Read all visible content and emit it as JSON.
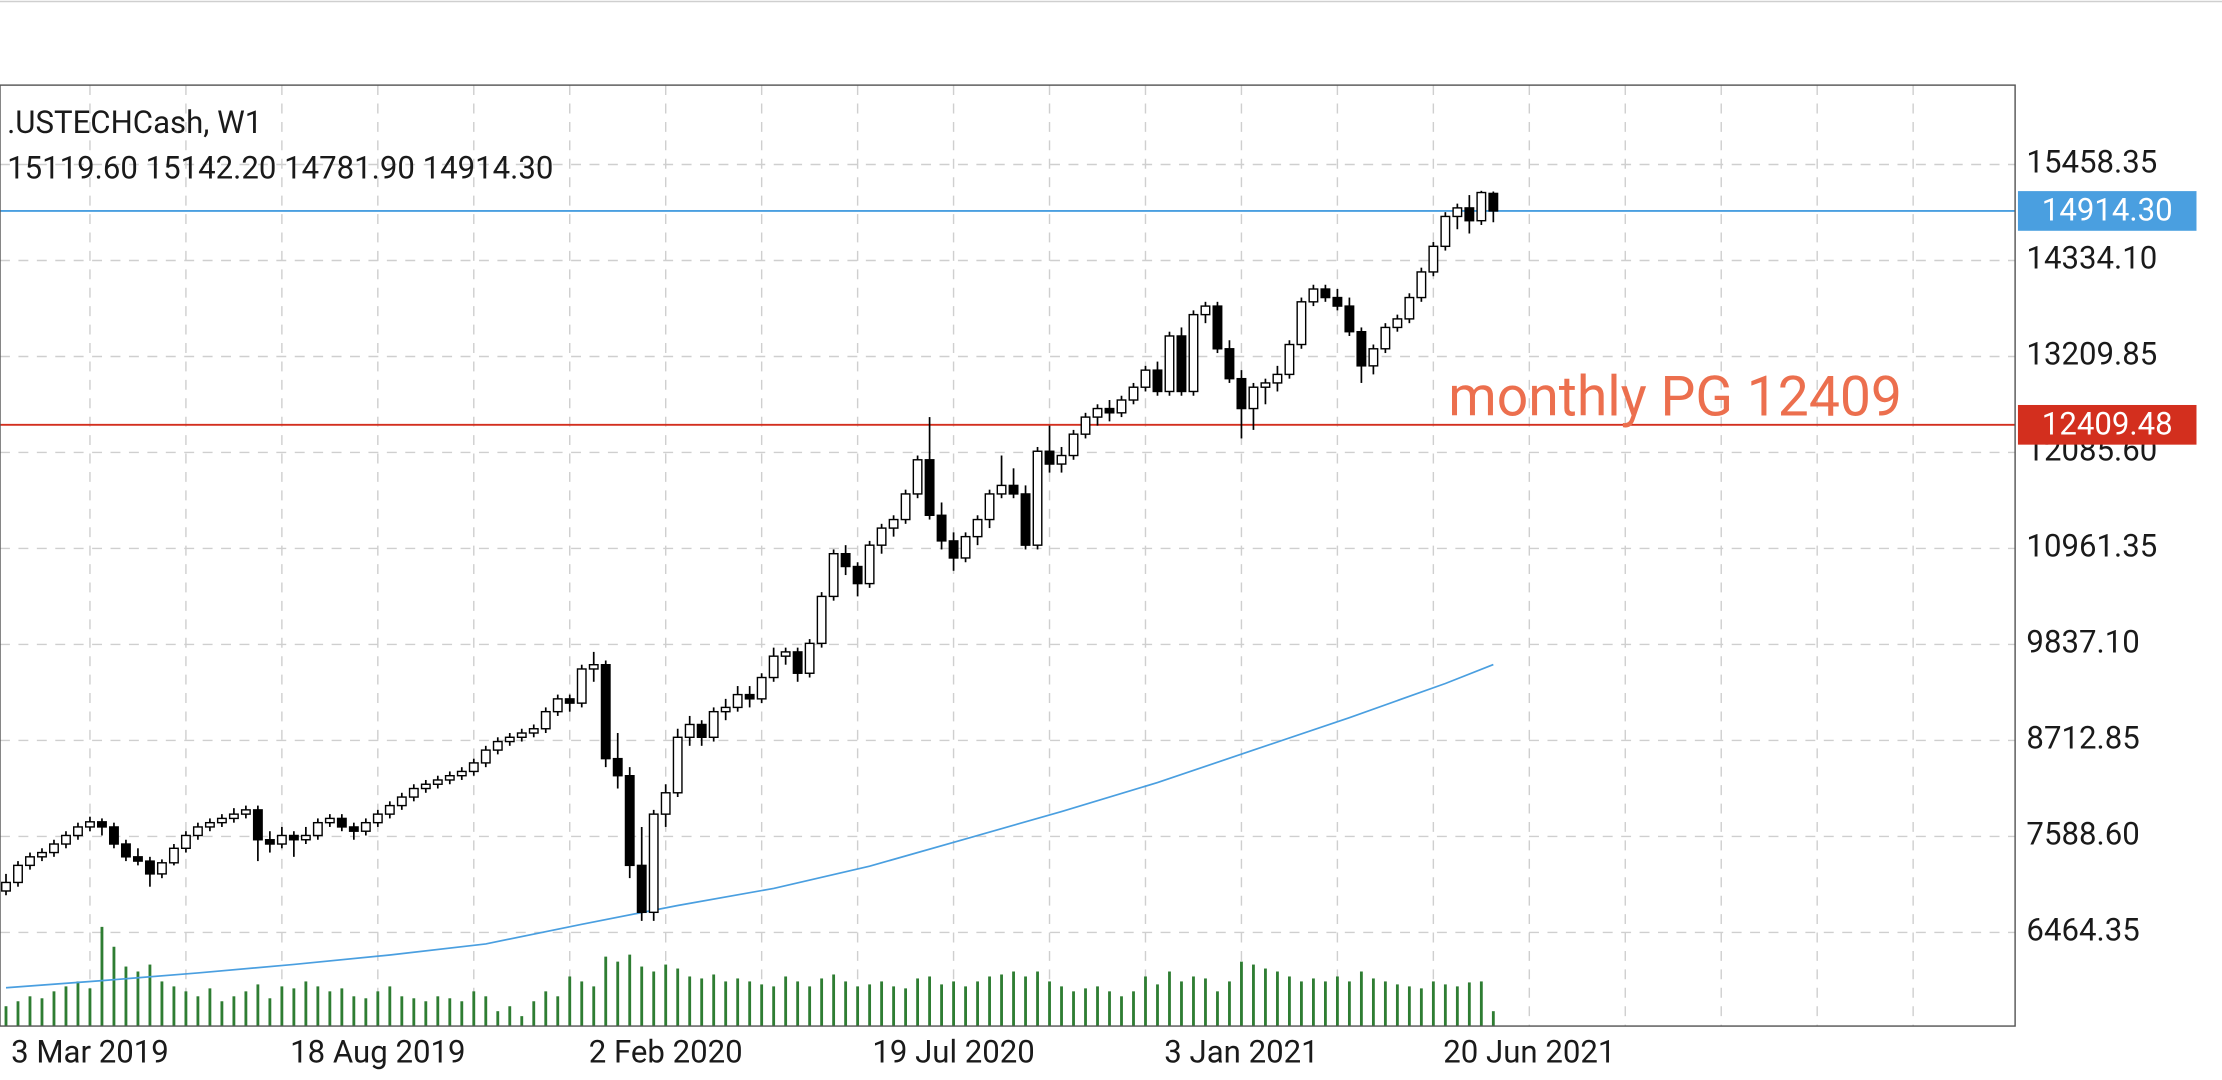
{
  "chart_data": {
    "type": "candlestick",
    "title": ".USTECHCash, W1",
    "subtitle": "15119.60 15142.20 14781.90 14914.30",
    "annotation": {
      "text": "monthly PG 12409",
      "color": "#ec6f4e"
    },
    "xlim": [
      -0.5,
      167.5
    ],
    "ylim": [
      5368,
      16388
    ],
    "volume_ylim": [
      0,
      100
    ],
    "grid": true,
    "up_color": "#ffffff",
    "down_color": "#000000",
    "volume_color": "#2e7d32",
    "yticks": [
      15458.35,
      {
        "value": 14334.1,
        "label": "14334.10"
      },
      13209.85,
      {
        "value": 12085.6,
        "label": "12085.60"
      },
      10961.35,
      {
        "value": 9837.1,
        "label": "9837.10"
      },
      8712.85,
      {
        "value": 7588.6,
        "label": "7588.60"
      },
      6464.35
    ],
    "xticks": [
      {
        "value": 7,
        "label": "3 Mar 2019"
      },
      {
        "value": 15,
        "label": null
      },
      {
        "value": 23,
        "label": null
      },
      {
        "value": 31,
        "label": "18 Aug 2019"
      },
      {
        "value": 39,
        "label": null
      },
      {
        "value": 47,
        "label": null
      },
      {
        "value": 55,
        "label": "2 Feb 2020"
      },
      {
        "value": 63,
        "label": null
      },
      {
        "value": 71,
        "label": null
      },
      {
        "value": 79,
        "label": "19 Jul 2020"
      },
      {
        "value": 87,
        "label": null
      },
      {
        "value": 95,
        "label": null
      },
      {
        "value": 103,
        "label": "3 Jan 2021"
      },
      {
        "value": 111,
        "label": null
      },
      {
        "value": 119,
        "label": null
      },
      {
        "value": 127,
        "label": "20 Jun 2021"
      },
      {
        "value": 135,
        "label": null
      },
      {
        "value": 143,
        "label": null
      },
      {
        "value": 151,
        "label": null
      },
      {
        "value": 159,
        "label": null
      }
    ],
    "price_lines": [
      {
        "value": 14914.3,
        "label": "14914.30",
        "color": "#4a9fe0"
      },
      {
        "value": 12409.48,
        "label": "12409.48",
        "color": "#d32f1e"
      }
    ],
    "ma": {
      "color": "#4a9fe0",
      "x": [
        0,
        8,
        16,
        24,
        32,
        40,
        48,
        56,
        64,
        72,
        80,
        88,
        96,
        104,
        112,
        120,
        124
      ],
      "values": [
        5817,
        5900,
        5990,
        6090,
        6200,
        6330,
        6560,
        6780,
        6980,
        7240,
        7560,
        7880,
        8220,
        8600,
        8980,
        9380,
        9602
      ]
    },
    "ohlc": [
      [
        6950,
        7150,
        6900,
        7050
      ],
      [
        7050,
        7300,
        7000,
        7250
      ],
      [
        7250,
        7400,
        7200,
        7350
      ],
      [
        7350,
        7450,
        7300,
        7400
      ],
      [
        7400,
        7550,
        7350,
        7500
      ],
      [
        7500,
        7650,
        7450,
        7600
      ],
      [
        7600,
        7750,
        7550,
        7700
      ],
      [
        7700,
        7820,
        7650,
        7760
      ],
      [
        7760,
        7800,
        7600,
        7700
      ],
      [
        7700,
        7750,
        7450,
        7500
      ],
      [
        7500,
        7550,
        7300,
        7350
      ],
      [
        7350,
        7450,
        7250,
        7300
      ],
      [
        7300,
        7350,
        7000,
        7150
      ],
      [
        7150,
        7320,
        7100,
        7280
      ],
      [
        7280,
        7500,
        7250,
        7450
      ],
      [
        7450,
        7650,
        7400,
        7600
      ],
      [
        7600,
        7750,
        7550,
        7700
      ],
      [
        7700,
        7800,
        7650,
        7750
      ],
      [
        7750,
        7850,
        7700,
        7800
      ],
      [
        7800,
        7920,
        7750,
        7850
      ],
      [
        7850,
        7950,
        7800,
        7900
      ],
      [
        7900,
        7950,
        7300,
        7550
      ],
      [
        7550,
        7650,
        7400,
        7500
      ],
      [
        7500,
        7700,
        7450,
        7600
      ],
      [
        7600,
        7650,
        7350,
        7550
      ],
      [
        7550,
        7700,
        7500,
        7600
      ],
      [
        7600,
        7800,
        7550,
        7750
      ],
      [
        7750,
        7850,
        7700,
        7800
      ],
      [
        7800,
        7850,
        7650,
        7700
      ],
      [
        7700,
        7750,
        7550,
        7650
      ],
      [
        7650,
        7800,
        7600,
        7750
      ],
      [
        7750,
        7900,
        7700,
        7850
      ],
      [
        7850,
        8000,
        7800,
        7950
      ],
      [
        7950,
        8100,
        7900,
        8050
      ],
      [
        8050,
        8200,
        8000,
        8150
      ],
      [
        8150,
        8250,
        8100,
        8200
      ],
      [
        8200,
        8300,
        8150,
        8250
      ],
      [
        8250,
        8350,
        8200,
        8300
      ],
      [
        8300,
        8400,
        8250,
        8350
      ],
      [
        8350,
        8500,
        8300,
        8450
      ],
      [
        8450,
        8650,
        8400,
        8600
      ],
      [
        8600,
        8750,
        8550,
        8700
      ],
      [
        8700,
        8800,
        8650,
        8750
      ],
      [
        8750,
        8850,
        8700,
        8800
      ],
      [
        8800,
        8900,
        8750,
        8850
      ],
      [
        8850,
        9100,
        8800,
        9050
      ],
      [
        9050,
        9250,
        9000,
        9200
      ],
      [
        9200,
        9250,
        9050,
        9150
      ],
      [
        9150,
        9600,
        9100,
        9550
      ],
      [
        9550,
        9750,
        9400,
        9600
      ],
      [
        9600,
        9650,
        8400,
        8500
      ],
      [
        8500,
        8800,
        8150,
        8300
      ],
      [
        8300,
        8400,
        7100,
        7250
      ],
      [
        7250,
        7700,
        6600,
        6700
      ],
      [
        6700,
        7900,
        6600,
        7850
      ],
      [
        7850,
        8200,
        7700,
        8100
      ],
      [
        8100,
        8850,
        8050,
        8750
      ],
      [
        8750,
        9000,
        8650,
        8900
      ],
      [
        8900,
        8950,
        8650,
        8750
      ],
      [
        8750,
        9100,
        8700,
        9050
      ],
      [
        9050,
        9200,
        8950,
        9100
      ],
      [
        9100,
        9350,
        9050,
        9250
      ],
      [
        9250,
        9350,
        9100,
        9200
      ],
      [
        9200,
        9500,
        9150,
        9450
      ],
      [
        9450,
        9800,
        9400,
        9700
      ],
      [
        9700,
        9800,
        9600,
        9750
      ],
      [
        9750,
        9800,
        9400,
        9500
      ],
      [
        9500,
        9900,
        9450,
        9850
      ],
      [
        9850,
        10450,
        9800,
        10400
      ],
      [
        10400,
        10950,
        10350,
        10900
      ],
      [
        10900,
        11000,
        10650,
        10750
      ],
      [
        10750,
        10800,
        10400,
        10550
      ],
      [
        10550,
        11050,
        10500,
        11000
      ],
      [
        11000,
        11250,
        10900,
        11200
      ],
      [
        11200,
        11350,
        11100,
        11300
      ],
      [
        11300,
        11650,
        11250,
        11600
      ],
      [
        11600,
        12050,
        11550,
        12000
      ],
      [
        12000,
        12500,
        11300,
        11350
      ],
      [
        11350,
        11500,
        10950,
        11050
      ],
      [
        11050,
        11150,
        10700,
        10850
      ],
      [
        10850,
        11150,
        10800,
        11100
      ],
      [
        11100,
        11350,
        11000,
        11300
      ],
      [
        11300,
        11650,
        11200,
        11600
      ],
      [
        11600,
        12050,
        11550,
        11700
      ],
      [
        11700,
        11900,
        11550,
        11600
      ],
      [
        11600,
        11700,
        10950,
        11000
      ],
      [
        11000,
        12150,
        10950,
        12100
      ],
      [
        12100,
        12400,
        11850,
        11950
      ],
      [
        11950,
        12150,
        11850,
        12050
      ],
      [
        12050,
        12350,
        12000,
        12300
      ],
      [
        12300,
        12550,
        12250,
        12500
      ],
      [
        12500,
        12650,
        12400,
        12600
      ],
      [
        12600,
        12700,
        12450,
        12550
      ],
      [
        12550,
        12750,
        12500,
        12700
      ],
      [
        12700,
        12900,
        12650,
        12850
      ],
      [
        12850,
        13100,
        12800,
        13050
      ],
      [
        13050,
        13150,
        12750,
        12800
      ],
      [
        12800,
        13500,
        12750,
        13450
      ],
      [
        13450,
        13550,
        12750,
        12800
      ],
      [
        12800,
        13750,
        12750,
        13700
      ],
      [
        13700,
        13850,
        13600,
        13800
      ],
      [
        13800,
        13850,
        13250,
        13300
      ],
      [
        13300,
        13400,
        12900,
        12950
      ],
      [
        12950,
        13050,
        12250,
        12600
      ],
      [
        12600,
        12900,
        12350,
        12850
      ],
      [
        12850,
        12950,
        12650,
        12900
      ],
      [
        12900,
        13100,
        12800,
        13000
      ],
      [
        13000,
        13400,
        12950,
        13350
      ],
      [
        13350,
        13900,
        13300,
        13850
      ],
      [
        13850,
        14050,
        13800,
        14000
      ],
      [
        14000,
        14050,
        13850,
        13900
      ],
      [
        13900,
        14000,
        13750,
        13800
      ],
      [
        13800,
        13900,
        13450,
        13500
      ],
      [
        13500,
        13550,
        12900,
        13100
      ],
      [
        13100,
        13350,
        13000,
        13300
      ],
      [
        13300,
        13600,
        13250,
        13550
      ],
      [
        13550,
        13700,
        13500,
        13650
      ],
      [
        13650,
        13950,
        13600,
        13900
      ],
      [
        13900,
        14250,
        13850,
        14200
      ],
      [
        14200,
        14550,
        14150,
        14500
      ],
      [
        14500,
        14900,
        14450,
        14850
      ],
      [
        14850,
        15000,
        14700,
        14950
      ],
      [
        14950,
        15100,
        14650,
        14800
      ],
      [
        14800,
        15150,
        14750,
        15130
      ],
      [
        15119.6,
        15142.2,
        14781.9,
        14914.3
      ]
    ],
    "volume": [
      20,
      25,
      30,
      28,
      35,
      40,
      45,
      38,
      100,
      80,
      60,
      55,
      62,
      45,
      40,
      35,
      30,
      38,
      25,
      30,
      35,
      42,
      28,
      40,
      38,
      45,
      40,
      35,
      38,
      30,
      28,
      35,
      40,
      30,
      28,
      25,
      30,
      28,
      25,
      35,
      30,
      15,
      20,
      10,
      25,
      35,
      30,
      50,
      45,
      40,
      70,
      65,
      72,
      60,
      55,
      62,
      58,
      50,
      48,
      52,
      45,
      48,
      45,
      42,
      40,
      50,
      45,
      40,
      48,
      52,
      45,
      40,
      42,
      45,
      40,
      38,
      48,
      50,
      42,
      45,
      40,
      45,
      50,
      52,
      55,
      50,
      55,
      45,
      40,
      35,
      38,
      40,
      35,
      30,
      35,
      50,
      42,
      55,
      45,
      50,
      48,
      35,
      45,
      65,
      62,
      58,
      55,
      50,
      45,
      48,
      45,
      50,
      45,
      55,
      48,
      45,
      42,
      40,
      38,
      45,
      42,
      40,
      44,
      45,
      15
    ]
  }
}
